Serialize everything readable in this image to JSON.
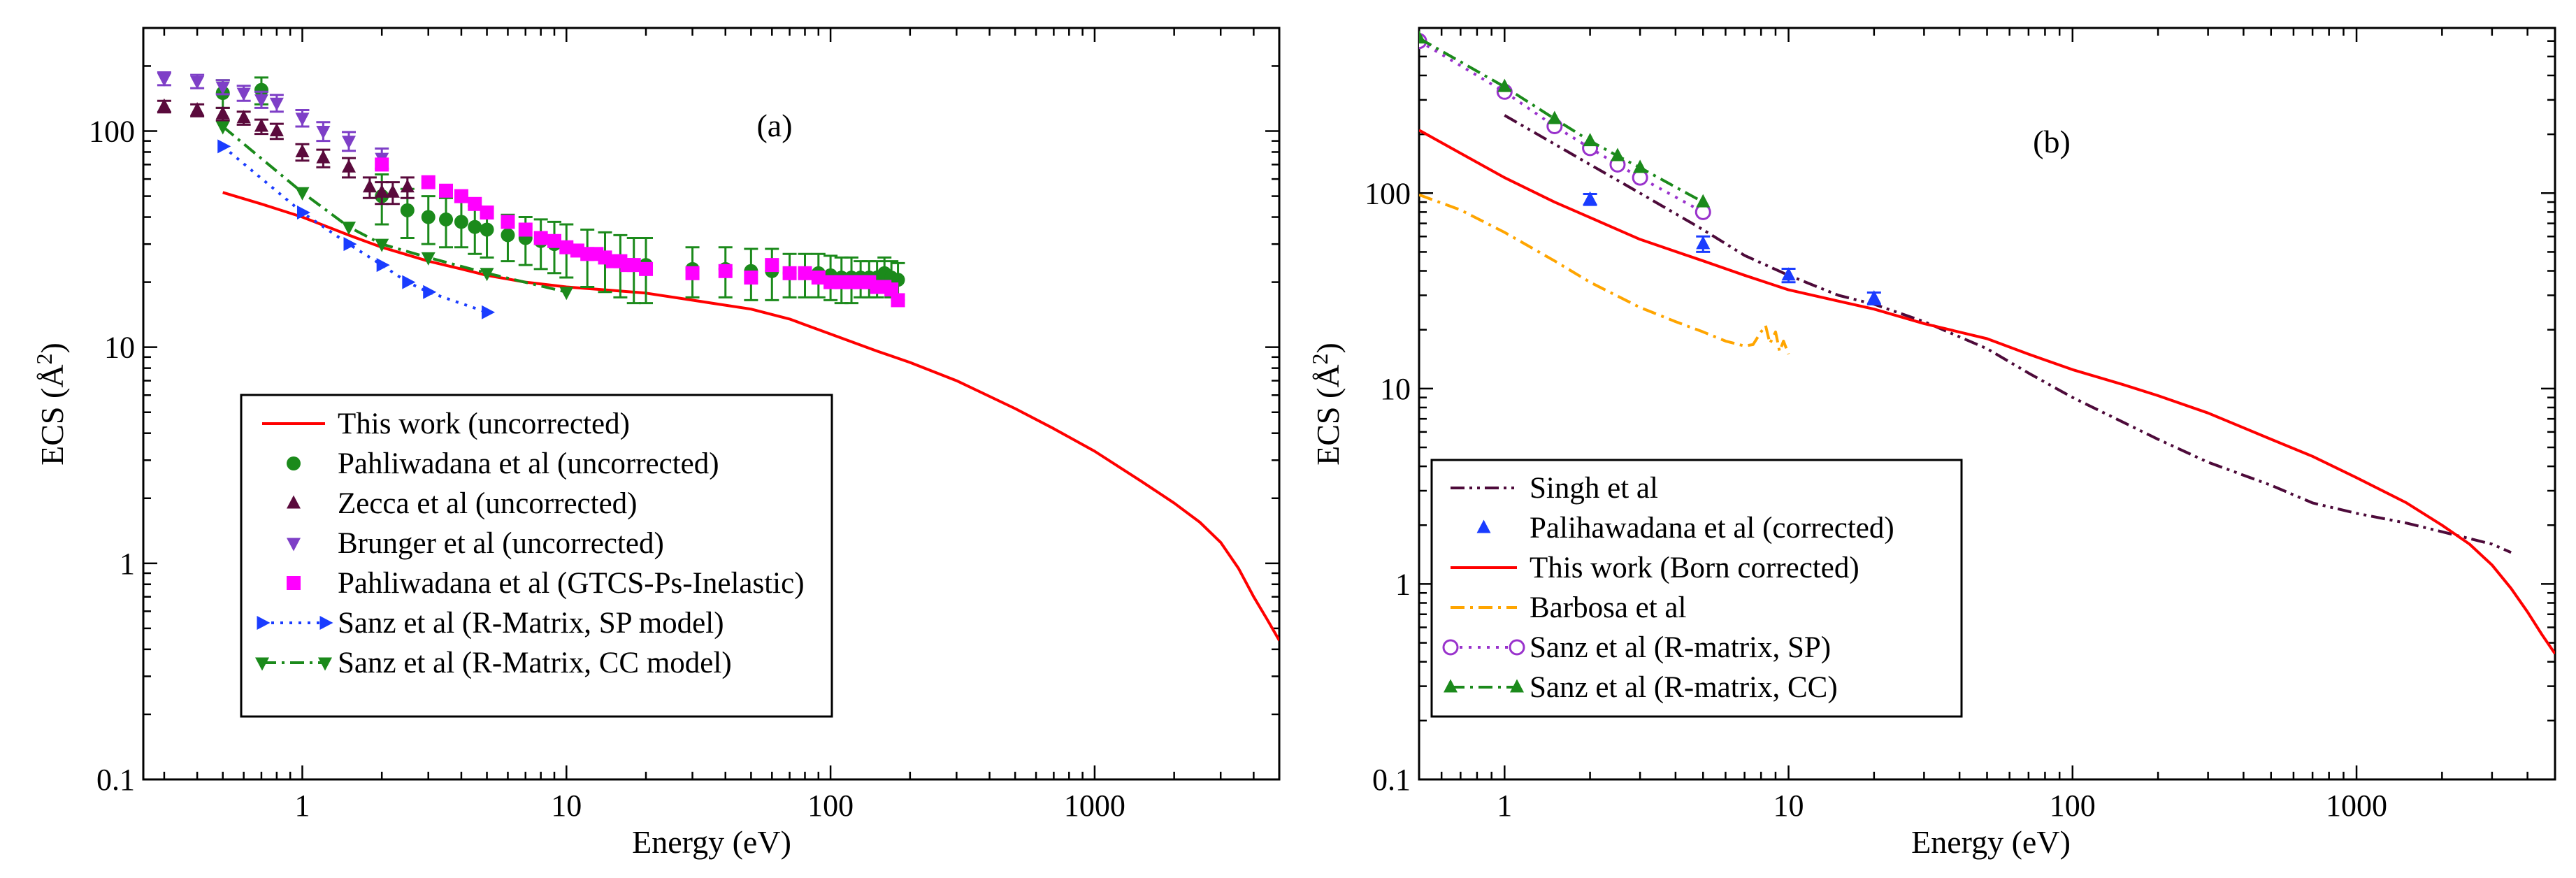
{
  "chart_data": [
    {
      "type": "scatter",
      "panel_label": "(a)",
      "xlabel": "Energy (eV)",
      "ylabel": "ECS  (Å",
      "ylabel_sup": "2",
      "ylabel_close": ")",
      "xscale": "log",
      "yscale": "log",
      "xlim": [
        0.25,
        5000
      ],
      "ylim": [
        0.1,
        300
      ],
      "xticks": [
        {
          "v": 1,
          "label": "1"
        },
        {
          "v": 10,
          "label": "10"
        },
        {
          "v": 100,
          "label": "100"
        },
        {
          "v": 1000,
          "label": "1000"
        }
      ],
      "yticks": [
        {
          "v": 0.1,
          "label": "0.1"
        },
        {
          "v": 1,
          "label": "1"
        },
        {
          "v": 10,
          "label": "10"
        },
        {
          "v": 100,
          "label": "100"
        }
      ],
      "legend_position": "lower-left",
      "series": [
        {
          "name": "This work (uncorrected)",
          "color": "#ff0000",
          "line": "solid",
          "marker": "none",
          "x": [
            0.5,
            0.7,
            1,
            1.5,
            2,
            3,
            4,
            5,
            7,
            10,
            15,
            20,
            30,
            50,
            70,
            100,
            150,
            200,
            300,
            500,
            700,
            1000,
            1500,
            2000,
            2500,
            3000,
            3500,
            4000,
            4500,
            5000
          ],
          "y": [
            52,
            46,
            40,
            33,
            29,
            25,
            23,
            21.5,
            20,
            19,
            18.3,
            17.8,
            16.5,
            15,
            13.5,
            11.5,
            9.6,
            8.5,
            7,
            5.2,
            4.2,
            3.3,
            2.4,
            1.9,
            1.55,
            1.25,
            0.95,
            0.7,
            0.55,
            0.44
          ]
        },
        {
          "name": "Pahliwadana et al (uncorrected)",
          "color": "#1b8a1b",
          "line": "none",
          "marker": "circle",
          "x": [
            0.5,
            0.7,
            2,
            2.5,
            3,
            3.5,
            4,
            4.5,
            5,
            6,
            7,
            8,
            9,
            10,
            12,
            14,
            16,
            18,
            20,
            30,
            40,
            50,
            60,
            70,
            80,
            90,
            100,
            110,
            120,
            130,
            140,
            150,
            160,
            170,
            180
          ],
          "y": [
            150,
            155,
            50,
            43,
            40,
            39,
            38,
            36,
            35,
            33,
            32,
            31,
            30,
            29,
            27,
            26,
            25,
            24,
            24,
            23,
            23,
            22.5,
            22.5,
            22,
            22,
            22,
            21.5,
            21,
            21,
            21,
            21,
            21,
            22,
            21,
            20.5
          ],
          "err": [
            22,
            22,
            13,
            11,
            10,
            10,
            9,
            9,
            9,
            8,
            8,
            8,
            8,
            8,
            8,
            8,
            8,
            8,
            8,
            6,
            6,
            6,
            6,
            5,
            5,
            5,
            5,
            5,
            5,
            4,
            4,
            4,
            4,
            4,
            4
          ]
        },
        {
          "name": "Zecca et al (uncorrected)",
          "color": "#5a0a3c",
          "line": "none",
          "marker": "triangle-up",
          "x": [
            0.3,
            0.4,
            0.5,
            0.6,
            0.7,
            0.8,
            1,
            1.2,
            1.5,
            1.8,
            2.0,
            2.2,
            2.5
          ],
          "y": [
            130,
            125,
            120,
            115,
            105,
            100,
            80,
            75,
            68,
            55,
            52,
            52,
            55
          ],
          "err": [
            8,
            8,
            8,
            8,
            8,
            8,
            7,
            7,
            7,
            6,
            6,
            6,
            6
          ]
        },
        {
          "name": "Brunger et al (uncorrected)",
          "color": "#7e3fc7",
          "line": "none",
          "marker": "triangle-down",
          "x": [
            0.3,
            0.4,
            0.5,
            0.6,
            0.7,
            0.8,
            1,
            1.2,
            1.5,
            2.0
          ],
          "y": [
            175,
            170,
            160,
            150,
            140,
            135,
            115,
            100,
            90,
            75
          ],
          "err": [
            12,
            12,
            12,
            12,
            12,
            12,
            10,
            10,
            9,
            8
          ]
        },
        {
          "name": "Pahliwadana et al (GTCS-Ps-Inelastic)",
          "color": "#ff00ff",
          "line": "none",
          "marker": "square",
          "x": [
            2,
            3,
            3.5,
            4,
            4.5,
            5,
            6,
            7,
            8,
            9,
            10,
            11,
            12,
            13,
            14,
            15,
            16,
            17,
            18,
            20,
            30,
            40,
            50,
            60,
            70,
            80,
            90,
            100,
            110,
            120,
            130,
            140,
            150,
            160,
            170,
            180
          ],
          "y": [
            70,
            58,
            53,
            50,
            46,
            42,
            38,
            35,
            32,
            31,
            29,
            28,
            27,
            27,
            26,
            25,
            25,
            24,
            24,
            23,
            22,
            22.5,
            21,
            24,
            22,
            22,
            21,
            20,
            20,
            20,
            20,
            20,
            19,
            19,
            18.5,
            16.5
          ]
        },
        {
          "name": "Sanz et al (R-Matrix, SP model)",
          "color": "#1a3cff",
          "line": "dotted",
          "marker": "triangle-right",
          "x": [
            0.5,
            1,
            1.5,
            2,
            2.5,
            3,
            5
          ],
          "y": [
            85,
            42,
            30,
            24,
            20,
            18,
            14.5
          ]
        },
        {
          "name": "Sanz et al (R-Matrix, CC model)",
          "color": "#1b8a1b",
          "line": "dashdot",
          "marker": "triangle-down",
          "x": [
            0.5,
            1,
            1.5,
            2,
            3,
            5,
            10
          ],
          "y": [
            105,
            52,
            36,
            30,
            26,
            22,
            18
          ]
        }
      ]
    },
    {
      "type": "scatter",
      "panel_label": "(b)",
      "xlabel": "Energy (eV)",
      "ylabel": "ECS  (Å",
      "ylabel_sup": "2",
      "ylabel_close": ")",
      "xscale": "log",
      "yscale": "log",
      "xlim": [
        0.5,
        5000
      ],
      "ylim": [
        0.1,
        700
      ],
      "xticks": [
        {
          "v": 1,
          "label": "1"
        },
        {
          "v": 10,
          "label": "10"
        },
        {
          "v": 100,
          "label": "100"
        },
        {
          "v": 1000,
          "label": "1000"
        }
      ],
      "yticks": [
        {
          "v": 0.1,
          "label": "0.1"
        },
        {
          "v": 1,
          "label": "1"
        },
        {
          "v": 10,
          "label": "10"
        },
        {
          "v": 100,
          "label": "100"
        }
      ],
      "legend_position": "lower-left",
      "series": [
        {
          "name": "Singh et al",
          "color": "#4d0a3a",
          "line": "dashdotdot",
          "marker": "none",
          "x": [
            1,
            2,
            3,
            5,
            7,
            10,
            15,
            20,
            30,
            50,
            70,
            100,
            200,
            300,
            500,
            700,
            1000,
            1500,
            2000,
            3000,
            3500
          ],
          "y": [
            250,
            140,
            100,
            65,
            48,
            38,
            30,
            27,
            22,
            16,
            12,
            9,
            5.5,
            4.2,
            3.2,
            2.6,
            2.3,
            2.05,
            1.85,
            1.6,
            1.45
          ]
        },
        {
          "name": "Palihawadana et al (corrected)",
          "color": "#1a3cff",
          "line": "none",
          "marker": "triangle-up",
          "x": [
            2,
            5,
            10,
            20
          ],
          "y": [
            93,
            55,
            38,
            29
          ],
          "err": [
            6,
            5,
            3,
            2
          ]
        },
        {
          "name": "This work (Born corrected)",
          "color": "#ff0000",
          "line": "solid",
          "marker": "none",
          "x": [
            0.5,
            0.7,
            1,
            1.5,
            2,
            3,
            5,
            7,
            10,
            15,
            20,
            30,
            50,
            70,
            100,
            150,
            200,
            300,
            500,
            700,
            1000,
            1500,
            2000,
            2500,
            3000,
            3500,
            4000,
            4500,
            5000
          ],
          "y": [
            210,
            160,
            120,
            90,
            75,
            58,
            45,
            38,
            32,
            28,
            25.5,
            21.5,
            18,
            15,
            12.5,
            10.5,
            9.2,
            7.5,
            5.5,
            4.5,
            3.5,
            2.6,
            2.0,
            1.6,
            1.25,
            0.95,
            0.72,
            0.55,
            0.44
          ]
        },
        {
          "name": "Barbosa et al",
          "color": "#ffa500",
          "line": "dashdot",
          "marker": "none",
          "x": [
            0.5,
            0.7,
            1,
            1.5,
            2,
            3,
            4,
            5,
            6,
            7,
            7.5,
            8,
            8.3,
            8.6,
            9,
            9.3,
            9.6,
            10
          ],
          "y": [
            98,
            82,
            63,
            45,
            35,
            26,
            22,
            19.5,
            17.5,
            16.5,
            16.8,
            19.5,
            21,
            17,
            19.5,
            15.5,
            17.5,
            15
          ]
        },
        {
          "name": "Sanz et al (R-matrix, SP)",
          "color": "#9932cc",
          "line": "dotted",
          "marker": "circle-open",
          "x": [
            0.5,
            1,
            1.5,
            2,
            2.5,
            3,
            5
          ],
          "y": [
            600,
            330,
            220,
            170,
            140,
            120,
            80
          ]
        },
        {
          "name": "Sanz et al (R-matrix, CC)",
          "color": "#1b8a1b",
          "line": "dashdot",
          "marker": "triangle-up",
          "x": [
            0.5,
            1,
            1.5,
            2,
            2.5,
            3,
            5
          ],
          "y": [
            620,
            350,
            240,
            185,
            155,
            135,
            90
          ]
        }
      ]
    }
  ]
}
